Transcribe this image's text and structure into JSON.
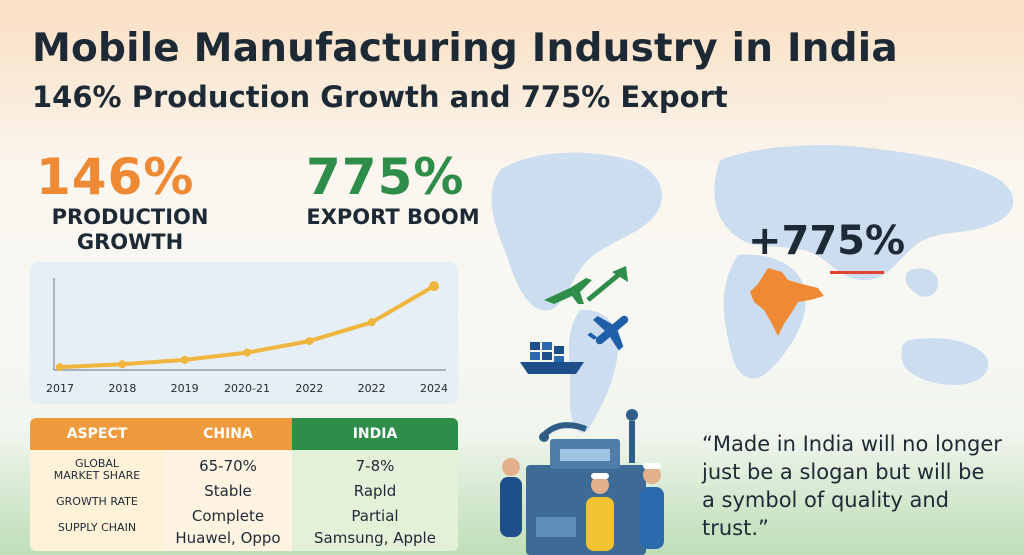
{
  "header": {
    "title": "Mobile Manufacturing Industry in India",
    "subtitle": "146% Production Growth and 775% Export"
  },
  "stats": {
    "production_value": "146%",
    "production_label_line1": "PRODUCTION",
    "production_label_line2": "GROWTH",
    "export_value": "775%",
    "export_label": "EXPORT BOOM"
  },
  "map": {
    "export_callout": "+775%"
  },
  "colors": {
    "saffron": "#ee8a35",
    "green": "#2f8d4a",
    "line": "#f0b53d",
    "navy": "#1d2a35"
  },
  "chart_data": {
    "type": "line",
    "categories": [
      "2017",
      "2018",
      "2019",
      "2020-21",
      "2022",
      "2022",
      "2024"
    ],
    "values": [
      2,
      4,
      7,
      12,
      20,
      33,
      58
    ],
    "ylim": [
      0,
      65
    ],
    "grid": false,
    "legend": "none"
  },
  "comparison_table": {
    "headers": [
      "ASPECT",
      "CHINA",
      "INDIA"
    ],
    "rows": [
      {
        "aspect_line1": "GLOBAL",
        "aspect_line2": "MARKET SHARE",
        "china": "65-70%",
        "india": "7-8%"
      },
      {
        "aspect_line1": "GROWTH RATE",
        "aspect_line2": "",
        "china": "Stable",
        "india": "Rapld"
      },
      {
        "aspect_line1": "SUPPLY CHAIN",
        "aspect_line2": "",
        "china": "Complete",
        "india": "Partial"
      }
    ],
    "footer": {
      "china": "Huawel, Oppo",
      "india": "Samsung, Apple"
    }
  },
  "quote": {
    "text": "“Made in India will no longer just be a slogan but will be a symbol of quality and trust.”"
  },
  "icons": [
    "airplane-icon",
    "arrow-icon",
    "cargo-ship-icon",
    "world-map",
    "india-map",
    "factory-workers-illustration"
  ]
}
